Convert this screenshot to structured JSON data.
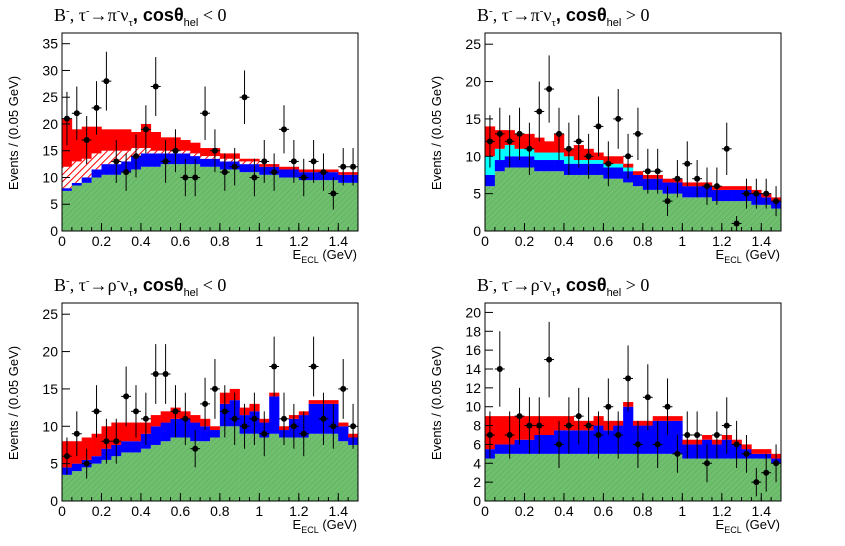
{
  "colors": {
    "green": "#6fbf6f",
    "blue": "#0000ff",
    "cyan": "#00ffff",
    "red": "#ff0000",
    "hatch_red_bg": "#ffffff",
    "points": "#000000"
  },
  "legend_note": "stack order bottom→top: green (hatched), blue, cyan, red hatched, red solid",
  "chart_data": [
    {
      "type": "bar",
      "title_parts": [
        "B",
        "-",
        ", τ",
        "-",
        "→π",
        "-",
        "ν",
        "τ",
        ", cosθ",
        "hel",
        " < 0"
      ],
      "xlabel_main": "E",
      "xlabel_sub": "ECL",
      "xlabel_unit": " (GeV)",
      "ylabel": "Events / (0.05 GeV)",
      "xlim": [
        0,
        1.5
      ],
      "ylim": [
        0,
        37
      ],
      "xticks": [
        0,
        0.2,
        0.4,
        0.6,
        0.8,
        1,
        1.2,
        1.4
      ],
      "xtick_labels": [
        "0",
        "0.2",
        "0.4",
        "0.6",
        "0.8",
        "1",
        "1.2",
        "1.4"
      ],
      "yticks": [
        0,
        5,
        10,
        15,
        20,
        25,
        30,
        35
      ],
      "ytick_labels": [
        "0",
        "5",
        "10",
        "15",
        "20",
        "25",
        "30",
        "35"
      ],
      "green": [
        7.5,
        8.5,
        9,
        10,
        10.5,
        10.5,
        11,
        11.5,
        12,
        12,
        12.5,
        12.5,
        12.5,
        12.5,
        12,
        12,
        11.5,
        11.5,
        11,
        11,
        10.5,
        10.5,
        10,
        10,
        9.5,
        9.5,
        9.5,
        9.5,
        9,
        9
      ],
      "blue": [
        0.5,
        0.5,
        1,
        1.5,
        2,
        2,
        2,
        2.5,
        2.5,
        2.5,
        2,
        2,
        2,
        1.5,
        1.5,
        1.5,
        1.5,
        1.5,
        1.5,
        1.5,
        1.5,
        1.5,
        1.5,
        1.5,
        1.5,
        1.5,
        1.5,
        1.5,
        1.5,
        1.5
      ],
      "cyan": [
        0,
        0,
        0,
        0,
        0,
        0,
        0,
        0,
        0,
        0,
        0,
        0,
        0,
        0,
        0,
        0,
        0,
        0,
        0,
        0,
        0,
        0,
        0,
        0,
        0,
        0,
        0,
        0,
        0,
        0
      ],
      "red_hatch": [
        4,
        4,
        3.5,
        3,
        2.5,
        2.5,
        2,
        1.5,
        1,
        0.5,
        0.5,
        0.5,
        0.5,
        0.5,
        0.5,
        0.5,
        0.5,
        0.5,
        0.5,
        0.5,
        0,
        0,
        0,
        0,
        0,
        0,
        0,
        0,
        0,
        0
      ],
      "red_solid": [
        9,
        6,
        6,
        5,
        4,
        4,
        4,
        3,
        4.5,
        3.5,
        2.5,
        2.5,
        2,
        2,
        1.5,
        1.5,
        1,
        1,
        0.5,
        0.5,
        0.5,
        0.5,
        0.5,
        0.5,
        0.5,
        0.5,
        0.5,
        0.5,
        0.5,
        0.5
      ],
      "points": [
        21,
        22,
        17,
        23,
        28,
        13,
        11,
        14,
        19,
        27,
        13,
        15,
        10,
        10,
        22,
        15,
        11,
        12,
        25,
        10,
        13,
        11,
        19,
        13,
        10,
        13,
        11,
        7,
        12,
        12
      ],
      "errors": [
        5,
        5,
        4.5,
        5,
        5.5,
        4,
        3.5,
        4,
        4.5,
        5.5,
        4,
        4,
        3.5,
        3.5,
        5,
        4,
        3.5,
        3.5,
        5,
        3.5,
        4,
        3.5,
        4.5,
        4,
        3.5,
        4,
        3.5,
        3,
        3.5,
        3.5
      ]
    },
    {
      "type": "bar",
      "title_parts": [
        "B",
        "-",
        ", τ",
        "-",
        "→π",
        "-",
        "ν",
        "τ",
        ", cosθ",
        "hel",
        " > 0"
      ],
      "xlabel_main": "E",
      "xlabel_sub": "ECL",
      "xlabel_unit": " (GeV)",
      "ylabel": "Events / (0.05 GeV)",
      "xlim": [
        0,
        1.5
      ],
      "ylim": [
        0,
        26.5
      ],
      "xticks": [
        0,
        0.2,
        0.4,
        0.6,
        0.8,
        1,
        1.2,
        1.4
      ],
      "xtick_labels": [
        "0",
        "0.2",
        "0.4",
        "0.6",
        "0.8",
        "1",
        "1.2",
        "1.4"
      ],
      "yticks": [
        0,
        5,
        10,
        15,
        20,
        25
      ],
      "ytick_labels": [
        "0",
        "5",
        "10",
        "15",
        "20",
        "25"
      ],
      "green": [
        6,
        8,
        8.5,
        8.5,
        8.5,
        8,
        8,
        8,
        7.5,
        7.5,
        7.5,
        7.5,
        7,
        7,
        6.5,
        6,
        5.5,
        5.5,
        5,
        5,
        4.5,
        4.5,
        4.5,
        4,
        4,
        4,
        4,
        3.5,
        3.5,
        3
      ],
      "blue": [
        1.5,
        1.5,
        1.5,
        1.5,
        1.5,
        1.5,
        1.5,
        1.5,
        1.5,
        1.5,
        1.5,
        1.5,
        1.5,
        1.5,
        1.5,
        1.5,
        1.5,
        1.5,
        1.5,
        1.5,
        1.5,
        1.5,
        1.5,
        1.5,
        1.5,
        1.5,
        1.5,
        1.5,
        1,
        1
      ],
      "cyan": [
        2.5,
        1.5,
        1.5,
        1,
        1,
        1,
        1,
        1,
        1,
        0.5,
        0.5,
        0.5,
        0.5,
        0.5,
        0.5,
        0,
        0,
        0,
        0,
        0,
        0,
        0,
        0,
        0,
        0,
        0,
        0,
        0,
        0,
        0
      ],
      "red_hatch": [
        0,
        0,
        0,
        0,
        0,
        0,
        0,
        0,
        0,
        0,
        0,
        0,
        0,
        0,
        0,
        0,
        0,
        0,
        0,
        0,
        0,
        0,
        0,
        0,
        0,
        0,
        0,
        0,
        0,
        0
      ],
      "red_solid": [
        4,
        2.5,
        2,
        2,
        2,
        2,
        1.5,
        2.5,
        1,
        2,
        1.5,
        1,
        1,
        1,
        0.5,
        0.5,
        0.5,
        0.5,
        0.5,
        0.5,
        0.5,
        0.5,
        0.5,
        0.5,
        0.5,
        0.5,
        0.5,
        0.5,
        0.5,
        0.5
      ],
      "points": [
        12,
        13,
        12,
        13,
        11,
        16,
        19,
        13,
        11,
        12,
        10,
        14,
        9,
        15,
        10,
        13,
        8,
        8,
        4,
        7,
        9,
        7,
        6,
        6,
        11,
        1,
        5,
        5,
        5,
        4
      ],
      "errors": [
        3.5,
        3.5,
        3.5,
        3.5,
        3.5,
        4,
        4.5,
        3.5,
        3.5,
        3.5,
        3,
        4,
        3,
        4,
        3,
        3.5,
        3,
        3,
        2,
        2.5,
        3,
        2.5,
        2.5,
        2.5,
        3.5,
        1,
        2,
        2,
        2,
        2
      ]
    },
    {
      "type": "bar",
      "title_parts": [
        "B",
        "-",
        ", τ",
        "-",
        "→ρ",
        "-",
        "ν",
        "τ",
        ", cosθ",
        "hel",
        " < 0"
      ],
      "xlabel_main": "E",
      "xlabel_sub": "ECL",
      "xlabel_unit": " (GeV)",
      "ylabel": "Events / (0.05 GeV)",
      "xlim": [
        0,
        1.5
      ],
      "ylim": [
        0,
        26.5
      ],
      "xticks": [
        0,
        0.2,
        0.4,
        0.6,
        0.8,
        1,
        1.2,
        1.4
      ],
      "xtick_labels": [
        "0",
        "0.2",
        "0.4",
        "0.6",
        "0.8",
        "1",
        "1.2",
        "1.4"
      ],
      "yticks": [
        0,
        5,
        10,
        15,
        20,
        25
      ],
      "ytick_labels": [
        "0",
        "5",
        "10",
        "15",
        "20",
        "25"
      ],
      "green": [
        3.5,
        4,
        4.5,
        5,
        5.5,
        6,
        6.5,
        6.5,
        7,
        7.5,
        8,
        8.5,
        8.5,
        8,
        8,
        8.5,
        10,
        10,
        9,
        9,
        8.5,
        9,
        8.5,
        8.5,
        8.5,
        9,
        9,
        9,
        8,
        7.5
      ],
      "blue": [
        1,
        1,
        1,
        1,
        1.5,
        1.5,
        1.5,
        1.5,
        2,
        2.5,
        2.5,
        2.5,
        2.5,
        2.5,
        2,
        1,
        3,
        3.5,
        2.5,
        3,
        2,
        5,
        1,
        2.5,
        3,
        4,
        4,
        4,
        2,
        1
      ],
      "cyan": [
        0,
        0,
        0,
        0,
        0,
        0,
        0,
        0,
        0,
        0,
        0,
        0,
        0,
        0,
        0,
        0,
        0,
        0,
        0,
        0,
        0,
        0,
        0,
        0,
        0,
        0,
        0,
        0,
        0,
        0
      ],
      "red_hatch": [
        0,
        0,
        0,
        0,
        0,
        0,
        0,
        0,
        0,
        0,
        0,
        0,
        0,
        0,
        0,
        0,
        0,
        0,
        0,
        0,
        0,
        0,
        0,
        0,
        0,
        0,
        0,
        0,
        0,
        0
      ],
      "red_solid": [
        3.5,
        3,
        3,
        3,
        3,
        3,
        2.5,
        2.5,
        1.5,
        1.5,
        1.5,
        1.5,
        1,
        1,
        1,
        0.5,
        1.5,
        1.5,
        1,
        1,
        0.5,
        0.5,
        0.5,
        0.5,
        0.5,
        0.5,
        0.5,
        0.5,
        0.5,
        0.5
      ],
      "points": [
        6,
        9,
        5,
        12,
        8,
        8,
        14,
        12,
        11,
        17,
        17,
        12,
        11,
        7,
        13,
        15,
        12,
        11,
        10,
        11,
        9,
        18,
        11,
        10,
        9,
        18,
        11,
        10,
        15,
        10
      ],
      "errors": [
        2.5,
        3,
        2,
        3.5,
        3,
        3,
        4,
        3.5,
        3.5,
        4,
        4,
        3.5,
        3.5,
        2.5,
        3.5,
        4,
        3.5,
        3.5,
        3,
        3.5,
        3,
        4,
        3.5,
        3,
        3,
        4,
        3.5,
        3,
        4,
        3
      ]
    },
    {
      "type": "bar",
      "title_parts": [
        "B",
        "-",
        ", τ",
        "-",
        "→ρ",
        "-",
        "ν",
        "τ",
        ", cosθ",
        "hel",
        " > 0"
      ],
      "xlabel_main": "E",
      "xlabel_sub": "ECL",
      "xlabel_unit": " (GeV)",
      "ylabel": "Events / (0.05 GeV)",
      "xlim": [
        0,
        1.5
      ],
      "ylim": [
        0,
        21
      ],
      "xticks": [
        0,
        0.2,
        0.4,
        0.6,
        0.8,
        1,
        1.2,
        1.4
      ],
      "xtick_labels": [
        "0",
        "0.2",
        "0.4",
        "0.6",
        "0.8",
        "1",
        "1.2",
        "1.4"
      ],
      "yticks": [
        0,
        2,
        4,
        6,
        8,
        10,
        12,
        14,
        16,
        18,
        20
      ],
      "ytick_labels": [
        "0",
        "2",
        "4",
        "6",
        "8",
        "10",
        "12",
        "14",
        "16",
        "18",
        "20"
      ],
      "green": [
        4.5,
        5,
        5,
        5,
        5,
        5,
        5,
        5,
        5,
        5,
        5,
        5,
        5,
        5,
        5,
        5,
        5,
        5,
        5,
        5,
        4.5,
        4.5,
        4.5,
        4.5,
        4.5,
        4.5,
        4.5,
        4.5,
        4.5,
        4
      ],
      "blue": [
        1,
        1,
        1,
        1.5,
        1.5,
        2,
        2,
        2.5,
        2.5,
        2.5,
        2.5,
        3,
        2.5,
        3,
        5,
        3,
        3,
        3.5,
        3.5,
        3.5,
        1.5,
        1.5,
        2,
        1.5,
        2,
        1.5,
        1,
        0.5,
        0.5,
        0.5
      ],
      "cyan": [
        0,
        0,
        0,
        0,
        0,
        0,
        0,
        0,
        0,
        0,
        0,
        0,
        0,
        0,
        0,
        0,
        0,
        0,
        0,
        0,
        0,
        0,
        0,
        0,
        0,
        0,
        0,
        0,
        0,
        0
      ],
      "red_hatch": [
        0,
        0,
        0,
        0,
        0,
        0,
        0,
        0,
        0,
        0,
        0,
        0,
        0,
        0,
        0,
        0,
        0,
        0,
        0,
        0,
        0,
        0,
        0,
        0,
        0,
        0,
        0,
        0,
        0,
        0
      ],
      "red_solid": [
        3.5,
        3,
        3,
        2.5,
        2.5,
        2,
        2,
        1.5,
        1.5,
        1,
        1,
        1,
        1,
        0.5,
        0.5,
        0.5,
        0.5,
        0.5,
        0.5,
        0.5,
        0.5,
        0.5,
        0.5,
        0.5,
        0.5,
        0.5,
        0.5,
        0.5,
        0.5,
        0.5
      ],
      "points": [
        7,
        14,
        7,
        9,
        8,
        8,
        15,
        6,
        8,
        9,
        8,
        7,
        10,
        7,
        13,
        6,
        11,
        6,
        10,
        5,
        7,
        7,
        4,
        7,
        8,
        6,
        5,
        2,
        3,
        4
      ],
      "errors": [
        2.5,
        4,
        2.5,
        3,
        3,
        3,
        4,
        2.5,
        3,
        3,
        3,
        2.5,
        3,
        2.5,
        3.5,
        2.5,
        3.5,
        2.5,
        3,
        2,
        2.5,
        2.5,
        2,
        2.5,
        3,
        2.5,
        2,
        1.5,
        2,
        2
      ]
    }
  ]
}
